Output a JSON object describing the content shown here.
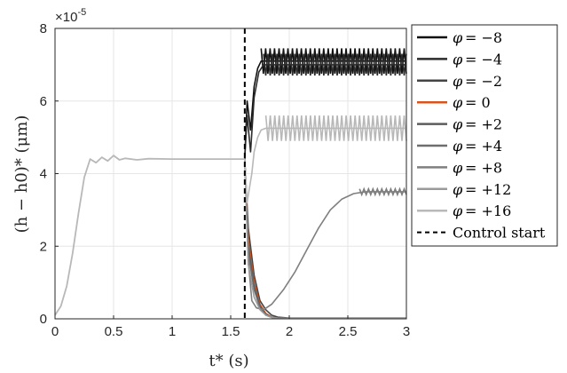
{
  "chart_data": {
    "type": "line",
    "title": "",
    "xlabel": "t* (s)",
    "ylabel": "(h − h0)* (μm)",
    "y_exponent_label": "×10",
    "y_exponent_power": "-5",
    "xlim": [
      0,
      3
    ],
    "ylim": [
      0,
      8
    ],
    "x_ticks": [
      0,
      0.5,
      1,
      1.5,
      2,
      2.5,
      3
    ],
    "x_tick_labels": [
      "0",
      "0.5",
      "1",
      "1.5",
      "2",
      "2.5",
      "3"
    ],
    "y_ticks": [
      0,
      2,
      4,
      6,
      8
    ],
    "y_tick_labels": [
      "0",
      "2",
      "4",
      "6",
      "8"
    ],
    "grid": true,
    "legend_position": "outside-right",
    "control_start": 1.62,
    "control_start_label": "Control start",
    "initial_transient": {
      "x": [
        0,
        0.05,
        0.1,
        0.15,
        0.2,
        0.25,
        0.3,
        0.35,
        0.4,
        0.45,
        0.5,
        0.55,
        0.6,
        0.7,
        0.8,
        1.0,
        1.2,
        1.4,
        1.62
      ],
      "y": [
        0.1,
        0.35,
        0.9,
        1.8,
        2.9,
        3.9,
        4.4,
        4.3,
        4.45,
        4.35,
        4.5,
        4.38,
        4.42,
        4.38,
        4.41,
        4.4,
        4.4,
        4.4,
        4.4
      ]
    },
    "series": [
      {
        "name": "φ = −8",
        "phi_label": "= −8",
        "color": "#111111",
        "x": [
          1.62,
          1.64,
          1.67,
          1.7,
          1.73,
          1.76,
          1.8,
          1.9,
          2.0,
          3.0
        ],
        "y": [
          4.4,
          6.0,
          5.2,
          6.4,
          6.9,
          7.1,
          7.1,
          7.1,
          7.1,
          7.1
        ],
        "band": [
          [
            1.62,
            1.76
          ],
          [
            1.76,
            3.0
          ]
        ],
        "amplitude": 0.35
      },
      {
        "name": "φ = −4",
        "phi_label": "= −4",
        "color": "#2b2b2b",
        "x": [
          1.62,
          1.64,
          1.67,
          1.7,
          1.74,
          1.78,
          2.0,
          3.0
        ],
        "y": [
          4.4,
          5.6,
          4.6,
          6.1,
          6.8,
          7.0,
          7.0,
          7.0
        ],
        "band": [
          [
            1.62,
            1.78
          ],
          [
            1.78,
            3.0
          ]
        ],
        "amplitude": 0.3
      },
      {
        "name": "φ = −2",
        "phi_label": "= −2",
        "color": "#444444",
        "x": [
          1.62,
          1.65,
          1.7,
          1.75,
          1.8,
          1.85,
          1.9,
          2.0,
          3.0
        ],
        "y": [
          4.4,
          2.5,
          1.2,
          0.5,
          0.25,
          0.1,
          0.05,
          0.02,
          0.02
        ],
        "band": [],
        "amplitude": 0.0
      },
      {
        "name": "φ = 0",
        "phi_label": "= 0",
        "color": "#d9541a",
        "x": [
          1.62,
          1.65,
          1.7,
          1.75,
          1.8,
          1.85,
          1.9,
          2.0,
          3.0
        ],
        "y": [
          4.4,
          2.2,
          1.0,
          0.4,
          0.15,
          0.05,
          0.02,
          0.01,
          0.01
        ],
        "band": [],
        "amplitude": 0.0
      },
      {
        "name": "φ = +2",
        "phi_label": "= +2",
        "color": "#5c5c5c",
        "x": [
          1.62,
          1.65,
          1.7,
          1.75,
          1.8,
          1.85,
          1.9,
          2.0,
          3.0
        ],
        "y": [
          4.4,
          2.0,
          0.9,
          0.35,
          0.12,
          0.05,
          0.02,
          0.01,
          0.01
        ],
        "band": [],
        "amplitude": 0.0
      },
      {
        "name": "φ = +4",
        "phi_label": "= +4",
        "color": "#6e6e6e",
        "x": [
          1.62,
          1.65,
          1.7,
          1.75,
          1.8,
          1.85,
          1.9,
          2.0,
          3.0
        ],
        "y": [
          4.4,
          1.8,
          0.8,
          0.3,
          0.1,
          0.04,
          0.02,
          0.01,
          0.01
        ],
        "band": [],
        "amplitude": 0.0
      },
      {
        "name": "φ = +8",
        "phi_label": "= +8",
        "color": "#7f7f7f",
        "x": [
          1.62,
          1.65,
          1.68,
          1.72,
          1.78,
          1.85,
          1.95,
          2.05,
          2.15,
          2.25,
          2.35,
          2.45,
          2.55,
          2.65,
          2.75,
          3.0
        ],
        "y": [
          4.4,
          1.6,
          0.5,
          0.3,
          0.25,
          0.4,
          0.8,
          1.3,
          1.9,
          2.5,
          3.0,
          3.3,
          3.45,
          3.5,
          3.5,
          3.5
        ],
        "band": [],
        "amplitude": 0.08
      },
      {
        "name": "φ = +12",
        "phi_label": "= +12",
        "color": "#9a9a9a",
        "x": [
          1.62,
          1.65,
          1.7,
          1.75,
          1.8,
          1.85,
          1.9,
          2.0,
          3.0
        ],
        "y": [
          4.4,
          1.5,
          0.6,
          0.25,
          0.1,
          0.04,
          0.02,
          0.01,
          0.01
        ],
        "band": [],
        "amplitude": 0.0
      },
      {
        "name": "φ = +16",
        "phi_label": "= +16",
        "color": "#b8b8b8",
        "x": [
          1.62,
          1.64,
          1.66,
          1.68,
          1.7,
          1.73,
          1.76,
          1.8,
          1.9,
          2.0,
          3.0
        ],
        "y": [
          4.4,
          3.2,
          3.6,
          4.0,
          4.6,
          5.0,
          5.2,
          5.25,
          5.25,
          5.25,
          5.25
        ],
        "band": [
          [
            1.62,
            1.8
          ],
          [
            1.8,
            3.0
          ]
        ],
        "amplitude": 0.35
      }
    ]
  }
}
